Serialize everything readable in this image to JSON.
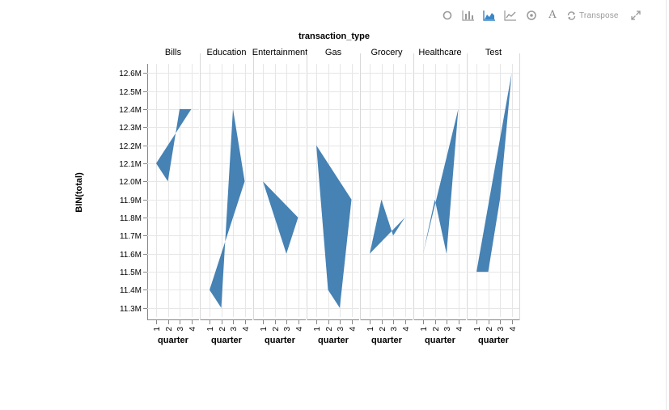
{
  "toolbar": {
    "items": [
      {
        "icon": "circle-icon"
      },
      {
        "icon": "bar-chart-icon"
      },
      {
        "icon": "area-chart-icon",
        "active": true
      },
      {
        "icon": "line-chart-icon"
      },
      {
        "icon": "target-icon"
      },
      {
        "icon": "font-icon",
        "glyph": "A"
      },
      {
        "icon": "transpose-icon",
        "label": "Transpose"
      },
      {
        "icon": "expand-icon"
      }
    ],
    "transpose_label": "Transpose",
    "font_glyph": "A",
    "active_color": "#3a87c8",
    "icon_color": "#999999"
  },
  "chart_data": {
    "type": "area",
    "title": "transaction_type",
    "ylabel": "BIN(total)",
    "xlabel": "quarter",
    "x_ticks": [
      1,
      2,
      3,
      4
    ],
    "y_ticks": [
      11300000,
      11400000,
      11500000,
      11600000,
      11700000,
      11800000,
      11900000,
      12000000,
      12100000,
      12200000,
      12300000,
      12400000,
      12500000,
      12600000
    ],
    "y_tick_labels": [
      "11.3M",
      "11.4M",
      "11.5M",
      "11.6M",
      "11.7M",
      "11.8M",
      "11.9M",
      "12.0M",
      "12.1M",
      "12.2M",
      "12.3M",
      "12.4M",
      "12.5M",
      "12.6M"
    ],
    "ylim": [
      11250000,
      12650000
    ],
    "grid": true,
    "color": "#4682b4",
    "facets": [
      {
        "name": "Bills",
        "x": [
          1,
          2,
          3,
          4
        ],
        "y": [
          12100000,
          12000000,
          12400000,
          12400000
        ]
      },
      {
        "name": "Education",
        "x": [
          1,
          2,
          3,
          4
        ],
        "y": [
          11400000,
          11300000,
          12400000,
          12000000
        ]
      },
      {
        "name": "Entertainment",
        "x": [
          1,
          3,
          4
        ],
        "y": [
          12000000,
          11600000,
          11800000
        ]
      },
      {
        "name": "Gas",
        "x": [
          1,
          2,
          3,
          4
        ],
        "y": [
          12200000,
          11400000,
          11300000,
          11900000
        ]
      },
      {
        "name": "Grocery",
        "x": [
          1,
          2,
          3,
          4
        ],
        "y": [
          11600000,
          11900000,
          11700000,
          11800000
        ]
      },
      {
        "name": "Healthcare",
        "x": [
          1,
          2,
          3,
          4
        ],
        "y": [
          11600000,
          11900000,
          11600000,
          12400000
        ]
      },
      {
        "name": "Test",
        "x": [
          1,
          2,
          3,
          4
        ],
        "y": [
          11500000,
          11500000,
          11900000,
          12600000
        ]
      }
    ]
  }
}
